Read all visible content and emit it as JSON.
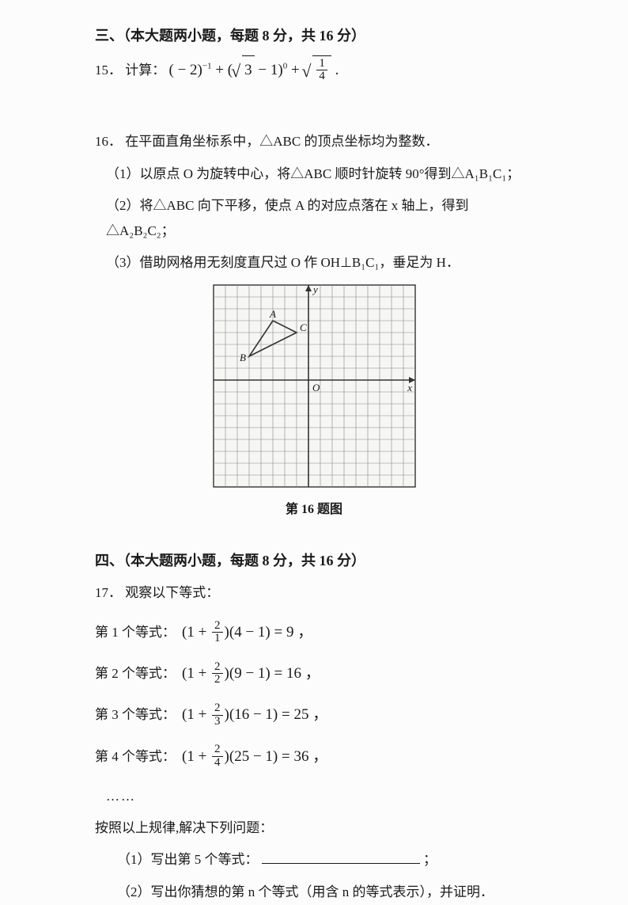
{
  "section3": {
    "head": "三、（本大题两小题，每题 8 分，共 16 分）",
    "q15": {
      "num": "15．",
      "prefix": "计算：",
      "f": {
        "a": "( − 2)",
        "a_exp": "−1",
        "plus1": " + (",
        "sqrt3": "3",
        "minus1": " − 1)",
        "b_exp": "0",
        "plus2": " + ",
        "frac_num": "1",
        "frac_den": "4",
        "tail": " ."
      }
    },
    "q16": {
      "num": "16．",
      "stem": "在平面直角坐标系中，△ABC 的顶点坐标均为整数．",
      "p1": "（1）以原点 O 为旋转中心，将△ABC 顺时针旋转 90°得到△A₁B₁C₁；",
      "p2": "（2）将△ABC 向下平移，使点 A 的对应点落在 x 轴上，得到△A₂B₂C₂；",
      "p3": "（3）借助网格用无刻度直尺过 O 作 OH⊥B₁C₁，垂足为 H．",
      "caption": "第 16 题图",
      "grid": {
        "size": 17,
        "cell": 15,
        "origin_col": 8,
        "origin_row": 8,
        "labels": {
          "y": "y",
          "x": "x",
          "O": "O",
          "A": "A",
          "B": "B",
          "C": "C"
        },
        "triangle": {
          "A": [
            -3,
            5
          ],
          "B": [
            -5,
            2
          ],
          "C": [
            -1,
            4
          ]
        },
        "line_color": "#333333",
        "grid_color": "#888888",
        "bg": "#f6f6f4"
      }
    }
  },
  "section4": {
    "head": "四、（本大题两小题，每题 8 分，共 16 分）",
    "q17": {
      "num": "17．",
      "stem": "观察以下等式：",
      "eqs": [
        {
          "label": "第 1 个等式：",
          "den": "1",
          "m": "4",
          "r": "9"
        },
        {
          "label": "第 2 个等式：",
          "den": "2",
          "m": "9",
          "r": "16"
        },
        {
          "label": "第 3 个等式：",
          "den": "3",
          "m": "16",
          "r": "25"
        },
        {
          "label": "第 4 个等式：",
          "den": "4",
          "m": "25",
          "r": "36"
        }
      ],
      "dots": "……",
      "follow": "按照以上规律,解决下列问题：",
      "p1_a": "（1）写出第 5 个等式：",
      "p1_b": "；",
      "p2": "（2）写出你猜想的第 n 个等式（用含 n 的等式表示），并证明．"
    }
  }
}
